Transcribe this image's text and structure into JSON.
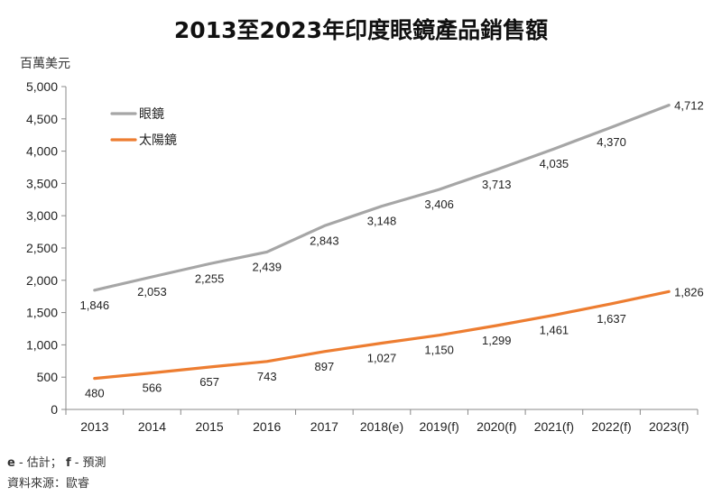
{
  "chart_data": {
    "type": "line",
    "title": "2013至2023年印度眼鏡產品銷售額",
    "ylabel": "百萬美元",
    "xlabel": "",
    "ylim": [
      0,
      5000
    ],
    "yticks": [
      "0",
      "500",
      "1,000",
      "1,500",
      "2,000",
      "2,500",
      "3,000",
      "3,500",
      "4,000",
      "4,500",
      "5,000"
    ],
    "yticks_values": [
      0,
      500,
      1000,
      1500,
      2000,
      2500,
      3000,
      3500,
      4000,
      4500,
      5000
    ],
    "categories": [
      "2013",
      "2014",
      "2015",
      "2016",
      "2017",
      "2018(e)",
      "2019(f)",
      "2020(f)",
      "2021(f)",
      "2022(f)",
      "2023(f)"
    ],
    "grid": false,
    "legend": "top-left",
    "series": [
      {
        "name": "眼鏡",
        "color": "#a6a6a6",
        "values": [
          1846,
          2053,
          2255,
          2439,
          2843,
          3148,
          3406,
          3713,
          4035,
          4370,
          4712
        ],
        "labels": [
          "1,846",
          "2,053",
          "2,255",
          "2,439",
          "2,843",
          "3,148",
          "3,406",
          "3,713",
          "4,035",
          "4,370",
          "4,712"
        ]
      },
      {
        "name": "太陽鏡",
        "color": "#ed7d31",
        "values": [
          480,
          566,
          657,
          743,
          897,
          1027,
          1150,
          1299,
          1461,
          1637,
          1826
        ],
        "labels": [
          "480",
          "566",
          "657",
          "743",
          "897",
          "1,027",
          "1,150",
          "1,299",
          "1,461",
          "1,637",
          "1,826"
        ]
      }
    ]
  },
  "notes": {
    "e_key": "e",
    "e_text": " - 估計；",
    "f_key": "f",
    "f_text": " - 預測",
    "source": "資料來源：歐睿"
  }
}
